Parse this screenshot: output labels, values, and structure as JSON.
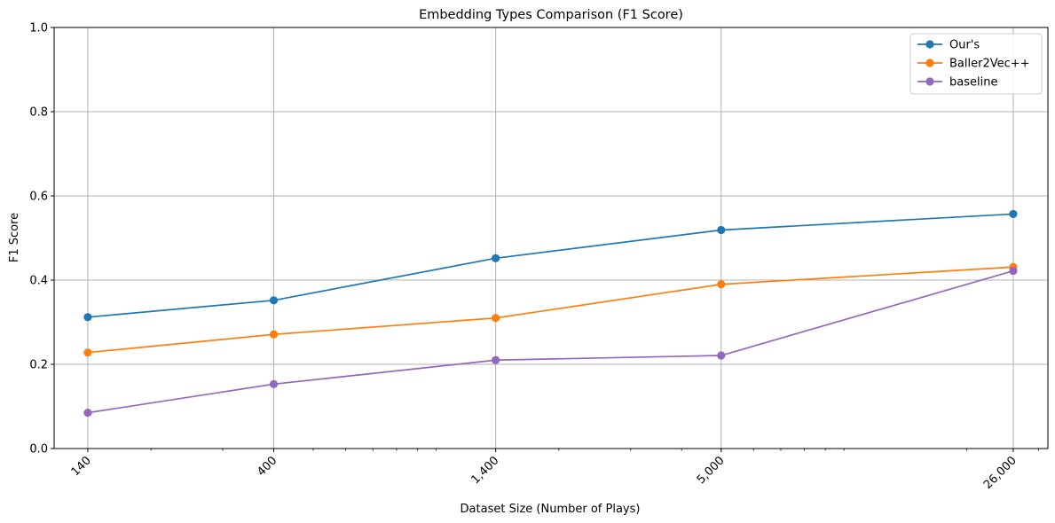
{
  "chart_data": {
    "type": "line",
    "title": "Embedding Types Comparison (F1 Score)",
    "xlabel": "Dataset Size (Number of Plays)",
    "ylabel": "F1 Score",
    "x_scale": "log",
    "x": [
      140,
      400,
      1400,
      5000,
      26000
    ],
    "x_tick_labels": [
      "140",
      "400",
      "1,400",
      "5,000",
      "26,000"
    ],
    "ylim": [
      0,
      1.0
    ],
    "y_ticks": [
      0.0,
      0.2,
      0.4,
      0.6,
      0.8,
      1.0
    ],
    "y_tick_labels": [
      "0.0",
      "0.2",
      "0.4",
      "0.6",
      "0.8",
      "1.0"
    ],
    "grid": true,
    "legend_position": "top-right",
    "series": [
      {
        "name": "Our's",
        "color": "#1f77b4",
        "values": [
          0.312,
          0.352,
          0.452,
          0.519,
          0.557
        ]
      },
      {
        "name": "Baller2Vec++",
        "color": "#ff7f0e",
        "values": [
          0.228,
          0.271,
          0.31,
          0.39,
          0.431
        ]
      },
      {
        "name": "baseline",
        "color": "#9467bd",
        "values": [
          0.085,
          0.153,
          0.21,
          0.221,
          0.422
        ]
      }
    ]
  }
}
